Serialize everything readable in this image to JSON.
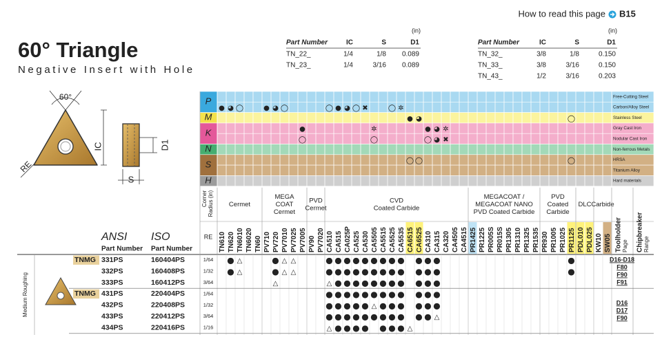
{
  "header": {
    "link_text": "How to read this page",
    "link_ref": "B15",
    "title": "60° Triangle",
    "subtitle": "Negative Insert with Hole"
  },
  "spec_tables": [
    {
      "unit": "(in)",
      "columns": [
        "Part Number",
        "IC",
        "S",
        "D1"
      ],
      "rows": [
        [
          "TN_22_",
          "1/4",
          "1/8",
          "0.089"
        ],
        [
          "TN_23_",
          "1/4",
          "3/16",
          "0.089"
        ]
      ]
    },
    {
      "unit": "(in)",
      "columns": [
        "Part Number",
        "IC",
        "S",
        "D1"
      ],
      "rows": [
        [
          "TN_32_",
          "3/8",
          "1/8",
          "0.150"
        ],
        [
          "TN_33_",
          "3/8",
          "3/16",
          "0.150"
        ],
        [
          "TN_43_",
          "1/2",
          "3/16",
          "0.203"
        ]
      ]
    }
  ],
  "diagram": {
    "angle": "60°",
    "ic": "IC",
    "re": "RE",
    "d1": "D1",
    "s": "S"
  },
  "materials": [
    {
      "letter": "P",
      "color": "#a9d9f1",
      "key": "#3aa9de",
      "rows": [
        {
          "name": "Free-Cutting Steel"
        },
        {
          "name": "Carbon/Alloy Steel",
          "marks": [
            "●",
            "◕",
            "◯",
            null,
            null,
            "●",
            "◕",
            "◯",
            null,
            null,
            null,
            null,
            "◯",
            "●",
            "◕",
            "◯",
            "✖",
            null,
            null,
            "◯",
            "✲",
            null,
            null,
            null,
            null,
            null,
            null,
            null,
            null,
            null,
            null,
            null,
            null,
            null,
            null,
            null,
            null,
            null,
            null,
            null,
            null,
            null,
            null,
            null
          ]
        }
      ]
    },
    {
      "letter": "M",
      "color": "#fbf49e",
      "key": "#f3e24a",
      "rows": [
        {
          "name": "Stainless Steel",
          "marks": [
            null,
            null,
            null,
            null,
            null,
            null,
            null,
            null,
            null,
            null,
            null,
            null,
            null,
            null,
            null,
            null,
            null,
            null,
            null,
            null,
            null,
            "●",
            "◕",
            null,
            null,
            null,
            null,
            null,
            null,
            null,
            null,
            null,
            null,
            null,
            null,
            null,
            null,
            null,
            null,
            "◯",
            null,
            null,
            null,
            null
          ]
        }
      ]
    },
    {
      "letter": "K",
      "color": "#f4aecb",
      "key": "#e4589a",
      "rows": [
        {
          "name": "Gray Cast Iron",
          "marks": [
            null,
            null,
            null,
            null,
            null,
            null,
            null,
            null,
            null,
            "●",
            null,
            null,
            null,
            null,
            null,
            null,
            null,
            "✲",
            null,
            null,
            null,
            null,
            null,
            "●",
            "◕",
            "✲",
            null,
            null,
            null,
            null,
            null,
            null,
            null,
            null,
            null,
            null,
            null,
            null,
            null,
            null,
            null,
            null,
            null,
            null
          ]
        },
        {
          "name": "Nodular Cast Iron",
          "marks": [
            null,
            null,
            null,
            null,
            null,
            null,
            null,
            null,
            null,
            "◯",
            null,
            null,
            null,
            null,
            null,
            null,
            null,
            "◯",
            null,
            null,
            null,
            null,
            null,
            "◯",
            "◕",
            "✖",
            null,
            null,
            null,
            null,
            null,
            null,
            null,
            null,
            null,
            null,
            null,
            null,
            null,
            null,
            null,
            null,
            null,
            null
          ]
        }
      ]
    },
    {
      "letter": "N",
      "color": "#a3d9b8",
      "key": "#46ad70",
      "rows": [
        {
          "name": "Non-ferrous Metals"
        }
      ]
    },
    {
      "letter": "S",
      "color": "#d2b084",
      "key": "#a0703d",
      "rows": [
        {
          "name": "HRSA",
          "marks": [
            null,
            null,
            null,
            null,
            null,
            null,
            null,
            null,
            null,
            null,
            null,
            null,
            null,
            null,
            null,
            null,
            null,
            null,
            null,
            null,
            null,
            "◯",
            "◯",
            null,
            null,
            null,
            null,
            null,
            null,
            null,
            null,
            null,
            null,
            null,
            null,
            null,
            null,
            null,
            null,
            "◯",
            null,
            null,
            null,
            null
          ]
        },
        {
          "name": "Titanium Alloy"
        }
      ]
    },
    {
      "letter": "H",
      "color": "#cfcfcf",
      "key": "#9c9c9c",
      "rows": [
        {
          "name": "Hard materials"
        }
      ]
    }
  ],
  "grade_header": {
    "corner_radius": [
      "Corner",
      "Radius (in)"
    ],
    "re": "RE"
  },
  "grade_groups": [
    {
      "label": [
        "Cermet"
      ],
      "grades": [
        {
          "name": "TN610",
          "color": "#d7263d"
        },
        {
          "name": "TN620",
          "color": "#d7263d"
        },
        {
          "name": "TN6010",
          "color": "#5f6f80"
        },
        {
          "name": "TN6020",
          "color": "#5f6f80"
        },
        {
          "name": "TN60",
          "color": "#111111"
        }
      ]
    },
    {
      "label": [
        "MEGA",
        "COAT",
        "Cermet"
      ],
      "grades": [
        {
          "name": "PV710",
          "color": "#d7263d"
        },
        {
          "name": "PV720",
          "color": "#d7263d"
        },
        {
          "name": "PV7010",
          "color": "#111111"
        },
        {
          "name": "PV7025",
          "color": "#111111"
        },
        {
          "name": "PV7005",
          "color": "#111111"
        }
      ]
    },
    {
      "label": [
        "PVD",
        "Cermet"
      ],
      "grades": [
        {
          "name": "PV90",
          "color": "#5f6f80"
        },
        {
          "name": "PV7020",
          "color": "#5f6f80"
        }
      ]
    },
    {
      "label": [
        "CVD",
        "Coated Carbide"
      ],
      "grades": [
        {
          "name": "CA510",
          "color": "#d7263d"
        },
        {
          "name": "CA515",
          "color": "#d7263d"
        },
        {
          "name": "CA025P",
          "color": "#d7263d"
        },
        {
          "name": "CA525",
          "color": "#d7263d"
        },
        {
          "name": "CA530",
          "color": "#d7263d"
        },
        {
          "name": "CA5505",
          "color": "#111111"
        },
        {
          "name": "CA5515",
          "color": "#111111"
        },
        {
          "name": "CA5525",
          "color": "#111111"
        },
        {
          "name": "CA5535",
          "color": "#111111"
        },
        {
          "name": "CA6515",
          "color": "#111111",
          "bg": "#fff27a"
        },
        {
          "name": "CA6525",
          "color": "#111111",
          "bg": "#fff27a"
        },
        {
          "name": "CA310",
          "color": "#d63384"
        },
        {
          "name": "CA315",
          "color": "#d63384"
        },
        {
          "name": "CA320",
          "color": "#d63384"
        },
        {
          "name": "CA4505",
          "color": "#5f6f80"
        },
        {
          "name": "CA4515",
          "color": "#5f6f80"
        }
      ]
    },
    {
      "label": [
        "MEGACOAT /",
        "MEGACOAT NANO",
        "PVD Coated Carbide"
      ],
      "grades": [
        {
          "name": "PR1425",
          "color": "#111111",
          "bg": "#bfe3f5"
        },
        {
          "name": "PR1225",
          "color": "#111111"
        },
        {
          "name": "PR005S",
          "color": "#d7263d"
        },
        {
          "name": "PR015S",
          "color": "#d7263d"
        },
        {
          "name": "PR1305",
          "color": "#111111"
        },
        {
          "name": "PR1310",
          "color": "#111111"
        },
        {
          "name": "PR1325",
          "color": "#111111"
        },
        {
          "name": "PR1535",
          "color": "#d7263d"
        }
      ]
    },
    {
      "label": [
        "PVD",
        "Coated",
        "Carbide"
      ],
      "grades": [
        {
          "name": "PR930",
          "color": "#5f6f80"
        },
        {
          "name": "PR1005",
          "color": "#5f6f80"
        },
        {
          "name": "PR1025",
          "color": "#5f6f80"
        },
        {
          "name": "PR1125",
          "color": "#111111",
          "bg": "#fff27a"
        }
      ]
    },
    {
      "label": [
        "DLC"
      ],
      "grades": [
        {
          "name": "PDL010",
          "color": "#d7263d",
          "bg": "#fff27a"
        },
        {
          "name": "PDL025",
          "color": "#d7263d",
          "bg": "#fff27a"
        }
      ]
    },
    {
      "label": [
        "Carbide"
      ],
      "grades": [
        {
          "name": "KW10",
          "color": "#1e8a4a"
        },
        {
          "name": "SW05",
          "color": "#111111",
          "bg": "#d2b084"
        }
      ]
    }
  ],
  "columns": {
    "ansi": "ANSI",
    "iso": "ISO",
    "part_number": "Part Number",
    "toolholder": [
      "Toolholder",
      "Page"
    ],
    "chipbreaker": [
      "Chipbreaker",
      "Range"
    ]
  },
  "products": {
    "range": "Medium Roughing",
    "groups": [
      {
        "series": "TNMG",
        "toolholder": [
          "D16-D18",
          "F80",
          "F90",
          "F91"
        ],
        "rows": [
          {
            "ansi": "331PS",
            "iso": "160404PS",
            "re": "1/64",
            "stock": [
              null,
              "●",
              "△",
              null,
              null,
              null,
              "●",
              "△",
              "△",
              null,
              null,
              null,
              "●",
              "●",
              "●",
              "●",
              "●",
              "●",
              "●",
              "●",
              "●",
              null,
              "●",
              "●",
              "●",
              null,
              null,
              null,
              null,
              null,
              null,
              null,
              null,
              null,
              null,
              null,
              null,
              null,
              null,
              "●",
              null,
              null,
              null,
              null
            ]
          },
          {
            "ansi": "332PS",
            "iso": "160408PS",
            "re": "1/32",
            "stock": [
              null,
              "●",
              "△",
              null,
              null,
              null,
              "●",
              "△",
              "△",
              null,
              null,
              null,
              "●",
              "●",
              "●",
              "●",
              "●",
              "●",
              "●",
              "●",
              "●",
              null,
              "●",
              "●",
              "●",
              null,
              null,
              null,
              null,
              null,
              null,
              null,
              null,
              null,
              null,
              null,
              null,
              null,
              null,
              "●",
              null,
              null,
              null,
              null
            ]
          },
          {
            "ansi": "333PS",
            "iso": "160412PS",
            "re": "3/64",
            "stock": [
              null,
              null,
              null,
              null,
              null,
              null,
              "△",
              null,
              null,
              null,
              null,
              null,
              "△",
              "●",
              "●",
              "●",
              "●",
              "●",
              "●",
              "●",
              "●",
              null,
              "●",
              "●",
              "●",
              null,
              null,
              null,
              null,
              null,
              null,
              null,
              null,
              null,
              null,
              null,
              null,
              null,
              null,
              null,
              null,
              null,
              null,
              null
            ]
          }
        ]
      },
      {
        "series": "TNMG",
        "toolholder": [
          "D16",
          "D17",
          "F90"
        ],
        "rows": [
          {
            "ansi": "431PS",
            "iso": "220404PS",
            "re": "1/64",
            "stock": [
              null,
              null,
              null,
              null,
              null,
              null,
              null,
              null,
              null,
              null,
              null,
              null,
              "●",
              "●",
              "●",
              "●",
              "●",
              "●",
              "●",
              "●",
              "●",
              null,
              "●",
              "●",
              "●",
              null,
              null,
              null,
              null,
              null,
              null,
              null,
              null,
              null,
              null,
              null,
              null,
              null,
              null,
              null,
              null,
              null,
              null,
              null
            ]
          },
          {
            "ansi": "432PS",
            "iso": "220408PS",
            "re": "1/32",
            "stock": [
              null,
              null,
              null,
              null,
              null,
              null,
              null,
              null,
              null,
              null,
              null,
              null,
              "●",
              "●",
              "●",
              "●",
              "●",
              "△",
              "●",
              "●",
              "●",
              null,
              "●",
              "●",
              "●",
              null,
              null,
              null,
              null,
              null,
              null,
              null,
              null,
              null,
              null,
              null,
              null,
              null,
              null,
              null,
              null,
              null,
              null,
              null
            ]
          },
          {
            "ansi": "433PS",
            "iso": "220412PS",
            "re": "3/64",
            "stock": [
              null,
              null,
              null,
              null,
              null,
              null,
              null,
              null,
              null,
              null,
              null,
              null,
              "●",
              "●",
              "●",
              "●",
              "●",
              "●",
              "●",
              "●",
              "●",
              null,
              "●",
              "●",
              "△",
              null,
              null,
              null,
              null,
              null,
              null,
              null,
              null,
              null,
              null,
              null,
              null,
              null,
              null,
              null,
              null,
              null,
              null,
              null
            ]
          },
          {
            "ansi": "434PS",
            "iso": "220416PS",
            "re": "1/16",
            "stock": [
              null,
              null,
              null,
              null,
              null,
              null,
              null,
              null,
              null,
              null,
              null,
              null,
              "△",
              "●",
              "●",
              "●",
              "●",
              null,
              "●",
              "●",
              "●",
              "△",
              null,
              null,
              null,
              null,
              null,
              null,
              null,
              null,
              null,
              null,
              null,
              null,
              null,
              null,
              null,
              null,
              null,
              null,
              null,
              null,
              null,
              null
            ]
          }
        ]
      }
    ]
  }
}
